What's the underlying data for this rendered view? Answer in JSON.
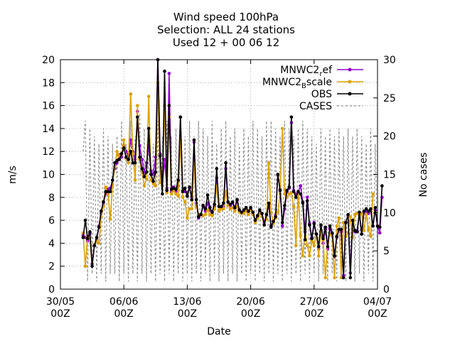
{
  "chart_data": {
    "type": "line",
    "title_lines": [
      "Wind speed 100hPa",
      "Selection: ALL     24 stations",
      "Used 12 + 00 06 12"
    ],
    "xlabel": "Date",
    "ylabel": "m/s",
    "y2label": "No cases",
    "xlim": [
      0,
      35
    ],
    "ylim": [
      0,
      20
    ],
    "y2lim": [
      0,
      30
    ],
    "yticks": [
      0,
      2,
      4,
      6,
      8,
      10,
      12,
      14,
      16,
      18,
      20
    ],
    "y2ticks": [
      0,
      5,
      10,
      15,
      20,
      25,
      30
    ],
    "xticks": [
      {
        "x": 0,
        "l1": "30/05",
        "l2": "00Z"
      },
      {
        "x": 7,
        "l1": "06/06",
        "l2": "00Z"
      },
      {
        "x": 14,
        "l1": "13/06",
        "l2": "00Z"
      },
      {
        "x": 21,
        "l1": "20/06",
        "l2": "00Z"
      },
      {
        "x": 28,
        "l1": "27/06",
        "l2": "00Z"
      },
      {
        "x": 35,
        "l1": "04/07",
        "l2": "00Z"
      }
    ],
    "grid": true,
    "legend_position": "top-right",
    "x_step_days": 0.25,
    "x_start": 2.5,
    "series": [
      {
        "name": "MNWC2_ref",
        "label_main": "MNWC2",
        "label_sub": "r",
        "label_rest": "ef",
        "color": "#9400d3",
        "values": [
          4.7,
          4.5,
          4.2,
          4.8,
          2.2,
          3.8,
          4.3,
          5.5,
          6.6,
          7.5,
          8.3,
          8.7,
          8.8,
          9.5,
          10.5,
          11.0,
          11.7,
          11.5,
          12.5,
          12.0,
          11.7,
          13.0,
          12.0,
          11.3,
          15.5,
          12.5,
          11.3,
          10.2,
          11.0,
          12.5,
          10.3,
          10.0,
          11.5,
          20.0,
          11.8,
          9.0,
          11.3,
          8.8,
          18.8,
          8.5,
          8.9,
          8.5,
          9.0,
          15.0,
          8.6,
          8.5,
          8.4,
          8.8,
          8.0,
          12.8,
          7.5,
          6.2,
          6.5,
          7.2,
          6.8,
          7.5,
          6.9,
          6.5,
          7.2,
          9.7,
          6.8,
          7.0,
          7.2,
          10.5,
          7.6,
          7.3,
          7.5,
          7.0,
          7.7,
          6.8,
          6.6,
          6.8,
          7.0,
          6.6,
          7.0,
          6.5,
          6.0,
          6.3,
          6.8,
          6.6,
          5.8,
          6.5,
          7.3,
          5.5,
          5.9,
          6.4,
          10.0,
          8.7,
          5.5,
          7.0,
          8.5,
          8.8,
          14.5,
          8.6,
          8.3,
          8.5,
          9.0,
          7.6,
          5.0,
          8.0,
          5.7,
          4.5,
          5.8,
          4.8,
          3.5,
          5.0,
          4.0,
          5.2,
          3.5,
          5.3,
          4.8,
          2.8,
          4.5,
          5.2,
          5.0,
          1.2,
          5.8,
          6.4,
          1.4,
          6.0,
          5.0,
          5.1,
          6.5,
          4.8,
          6.7,
          6.8,
          6.6,
          6.9,
          5.5,
          6.9,
          5.5,
          4.9,
          8.0
        ]
      },
      {
        "name": "MNWC2_Bscale",
        "label_main": "MNWC2",
        "label_sub": "B",
        "label_rest": "scale",
        "color": "#e0a000",
        "values": [
          4.9,
          2.0,
          4.6,
          4.4,
          2.0,
          3.9,
          4.2,
          4.0,
          6.3,
          7.2,
          8.9,
          8.3,
          6.1,
          9.1,
          10.7,
          12.0,
          11.6,
          11.8,
          13.0,
          11.4,
          11.0,
          17.0,
          11.8,
          9.5,
          16.0,
          11.3,
          10.2,
          9.0,
          9.6,
          16.8,
          9.5,
          9.2,
          9.0,
          18.0,
          9.3,
          9.0,
          16.0,
          8.4,
          15.0,
          8.3,
          8.6,
          8.3,
          8.1,
          13.0,
          8.0,
          7.6,
          6.2,
          7.0,
          7.0,
          11.0,
          7.2,
          6.5,
          6.5,
          6.4,
          6.5,
          6.9,
          6.5,
          6.4,
          7.0,
          9.0,
          6.8,
          7.0,
          7.0,
          8.5,
          7.3,
          7.0,
          7.1,
          6.8,
          7.2,
          6.7,
          6.6,
          6.6,
          6.8,
          6.5,
          6.9,
          6.5,
          5.8,
          6.2,
          6.6,
          6.3,
          5.6,
          6.1,
          11.0,
          6.7,
          5.7,
          6.2,
          6.7,
          8.3,
          14.0,
          8.3,
          8.0,
          8.3,
          8.4,
          7.2,
          3.8,
          8.3,
          4.7,
          2.9,
          5.2,
          3.8,
          2.9,
          4.2,
          3.8,
          4.8,
          2.9,
          5.1,
          4.3,
          1.0,
          4.0,
          4.8,
          4.6,
          1.0,
          5.5,
          6.2,
          1.0,
          5.8,
          4.6,
          4.9,
          6.3,
          4.5,
          6.5,
          6.6,
          6.4,
          6.6,
          5.1,
          6.5,
          5.2,
          4.6,
          8.3
        ]
      },
      {
        "name": "OBS",
        "color": "#000000",
        "values": [
          4.5,
          6.0,
          4.4,
          5.0,
          2.0,
          3.8,
          4.5,
          5.4,
          6.8,
          7.6,
          8.5,
          8.5,
          8.5,
          9.5,
          11.0,
          11.2,
          11.3,
          11.8,
          12.3,
          11.5,
          11.3,
          12.0,
          11.0,
          11.0,
          15.0,
          11.5,
          10.5,
          9.8,
          10.2,
          14.0,
          10.0,
          9.4,
          10.2,
          20.0,
          11.6,
          8.3,
          19.0,
          8.6,
          16.0,
          8.7,
          8.8,
          8.7,
          9.5,
          15.0,
          8.5,
          8.8,
          8.1,
          8.9,
          7.8,
          13.0,
          7.8,
          6.3,
          6.5,
          7.3,
          7.0,
          8.2,
          7.1,
          6.7,
          7.4,
          10.5,
          7.2,
          7.2,
          7.5,
          11.0,
          7.6,
          7.4,
          7.6,
          7.1,
          7.8,
          6.9,
          6.7,
          6.9,
          7.1,
          6.8,
          7.1,
          6.7,
          6.0,
          6.4,
          6.9,
          6.6,
          5.6,
          6.5,
          7.5,
          5.4,
          5.9,
          6.3,
          10.0,
          8.6,
          5.8,
          7.3,
          8.6,
          8.9,
          15.0,
          8.5,
          8.0,
          8.5,
          8.3,
          7.5,
          4.3,
          7.7,
          5.6,
          4.4,
          5.7,
          4.8,
          3.7,
          5.6,
          4.4,
          5.4,
          3.7,
          5.5,
          4.9,
          2.9,
          4.6,
          5.2,
          5.2,
          1.0,
          5.8,
          6.5,
          1.0,
          6.0,
          5.1,
          5.0,
          6.7,
          4.8,
          6.8,
          7.0,
          6.8,
          7.0,
          5.5,
          7.1,
          5.5,
          5.4,
          9.0
        ]
      },
      {
        "name": "CASES",
        "color": "#909090",
        "dashed": true,
        "values": [
          18,
          22,
          1,
          21,
          2,
          20,
          1,
          19,
          2,
          21,
          1,
          20,
          2,
          19,
          2,
          20,
          1,
          22,
          2,
          19,
          1,
          22,
          2,
          20,
          1,
          23,
          2,
          21,
          1,
          20,
          2,
          19,
          1,
          22,
          2,
          20,
          1,
          22,
          2,
          20,
          1,
          21,
          2,
          22,
          1,
          20,
          2,
          22,
          1,
          20,
          2,
          22,
          1,
          21,
          2,
          20,
          1,
          22,
          2,
          19,
          1,
          21,
          2,
          22,
          1,
          20,
          2,
          21,
          1,
          19,
          2,
          21,
          1,
          20,
          2,
          22,
          1,
          21,
          2,
          20,
          1,
          22,
          2,
          22,
          1,
          21,
          2,
          20,
          1,
          22,
          2,
          21,
          1,
          20,
          2,
          21,
          1,
          22,
          2,
          21,
          1,
          20,
          2,
          19,
          1,
          21,
          2,
          20,
          1,
          21,
          2,
          20,
          1,
          21,
          2,
          20,
          1,
          21,
          2,
          20,
          1,
          21,
          2,
          20,
          1,
          19,
          2,
          21,
          1,
          19,
          5
        ]
      }
    ]
  }
}
